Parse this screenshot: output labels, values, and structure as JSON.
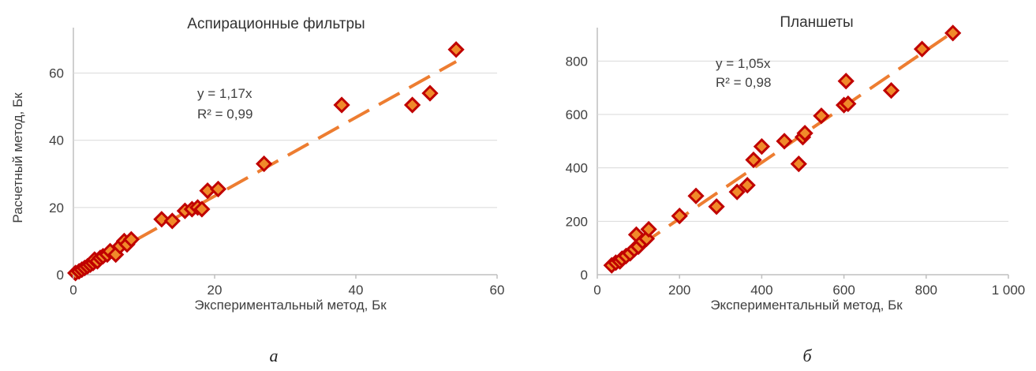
{
  "chart_data": [
    {
      "type": "scatter",
      "panel": "a",
      "title": "Аспирационные фильтры",
      "xlabel": "Экспериментальный метод, Бк",
      "ylabel": "Расчетный метод, Бк",
      "xlim": [
        0,
        60
      ],
      "ylim": [
        0,
        70
      ],
      "xticks": [
        0,
        20,
        40,
        60
      ],
      "xtick_labels": [
        "0",
        "20",
        "40",
        "60"
      ],
      "yticks": [
        0,
        20,
        40,
        60
      ],
      "ytick_labels": [
        "0",
        "20",
        "40",
        "60"
      ],
      "grid": "horizontal",
      "equation": "y = 1,17x",
      "r2": "R² = 0,99",
      "trend_slope": 1.17,
      "caption": "а",
      "colors": {
        "marker_fill": "#f08a2a",
        "marker_edge": "#c00000",
        "trendline": "#ed7d31"
      },
      "points": [
        [
          0.3,
          0.5
        ],
        [
          0.8,
          1.0
        ],
        [
          1.2,
          1.5
        ],
        [
          1.6,
          2.0
        ],
        [
          2.0,
          2.5
        ],
        [
          2.4,
          3.0
        ],
        [
          2.8,
          3.5
        ],
        [
          3.0,
          4.5
        ],
        [
          3.4,
          4.0
        ],
        [
          3.8,
          5.0
        ],
        [
          4.2,
          5.5
        ],
        [
          4.8,
          6.0
        ],
        [
          5.2,
          7.0
        ],
        [
          6.0,
          6.0
        ],
        [
          6.6,
          8.5
        ],
        [
          7.2,
          10.0
        ],
        [
          7.6,
          9.0
        ],
        [
          8.2,
          10.5
        ],
        [
          12.5,
          16.5
        ],
        [
          14.0,
          16.0
        ],
        [
          15.8,
          19.0
        ],
        [
          16.8,
          19.5
        ],
        [
          17.6,
          20.0
        ],
        [
          18.2,
          19.5
        ],
        [
          19.0,
          25.0
        ],
        [
          20.5,
          25.5
        ],
        [
          27.0,
          33.0
        ],
        [
          38.0,
          50.5
        ],
        [
          48.0,
          50.5
        ],
        [
          50.5,
          54.0
        ],
        [
          54.2,
          67.0
        ]
      ]
    },
    {
      "type": "scatter",
      "panel": "b",
      "title": "Планшеты",
      "xlabel": "Экспериментальный метод,  Бк",
      "ylabel": "",
      "xlim": [
        0,
        1000
      ],
      "ylim": [
        0,
        940
      ],
      "xticks": [
        0,
        200,
        400,
        600,
        800,
        1000
      ],
      "xtick_labels": [
        "0",
        "200",
        "400",
        "600",
        "800",
        "1 000"
      ],
      "yticks": [
        0,
        200,
        400,
        600,
        800
      ],
      "ytick_labels": [
        "0",
        "200",
        "400",
        "600",
        "800"
      ],
      "grid": "horizontal",
      "equation": "y = 1,05x",
      "r2": "R² = 0,98",
      "trend_slope": 1.05,
      "caption": "б",
      "colors": {
        "marker_fill": "#f08a2a",
        "marker_edge": "#c00000",
        "trendline": "#ed7d31"
      },
      "points": [
        [
          35,
          35
        ],
        [
          45,
          45
        ],
        [
          55,
          50
        ],
        [
          60,
          60
        ],
        [
          70,
          70
        ],
        [
          80,
          80
        ],
        [
          90,
          95
        ],
        [
          95,
          150
        ],
        [
          100,
          105
        ],
        [
          110,
          125
        ],
        [
          120,
          135
        ],
        [
          125,
          170
        ],
        [
          200,
          220
        ],
        [
          240,
          295
        ],
        [
          290,
          255
        ],
        [
          340,
          310
        ],
        [
          365,
          335
        ],
        [
          380,
          430
        ],
        [
          400,
          480
        ],
        [
          455,
          500
        ],
        [
          490,
          415
        ],
        [
          500,
          515
        ],
        [
          505,
          530
        ],
        [
          545,
          595
        ],
        [
          600,
          635
        ],
        [
          605,
          725
        ],
        [
          610,
          640
        ],
        [
          715,
          690
        ],
        [
          790,
          845
        ],
        [
          865,
          905
        ]
      ]
    }
  ]
}
